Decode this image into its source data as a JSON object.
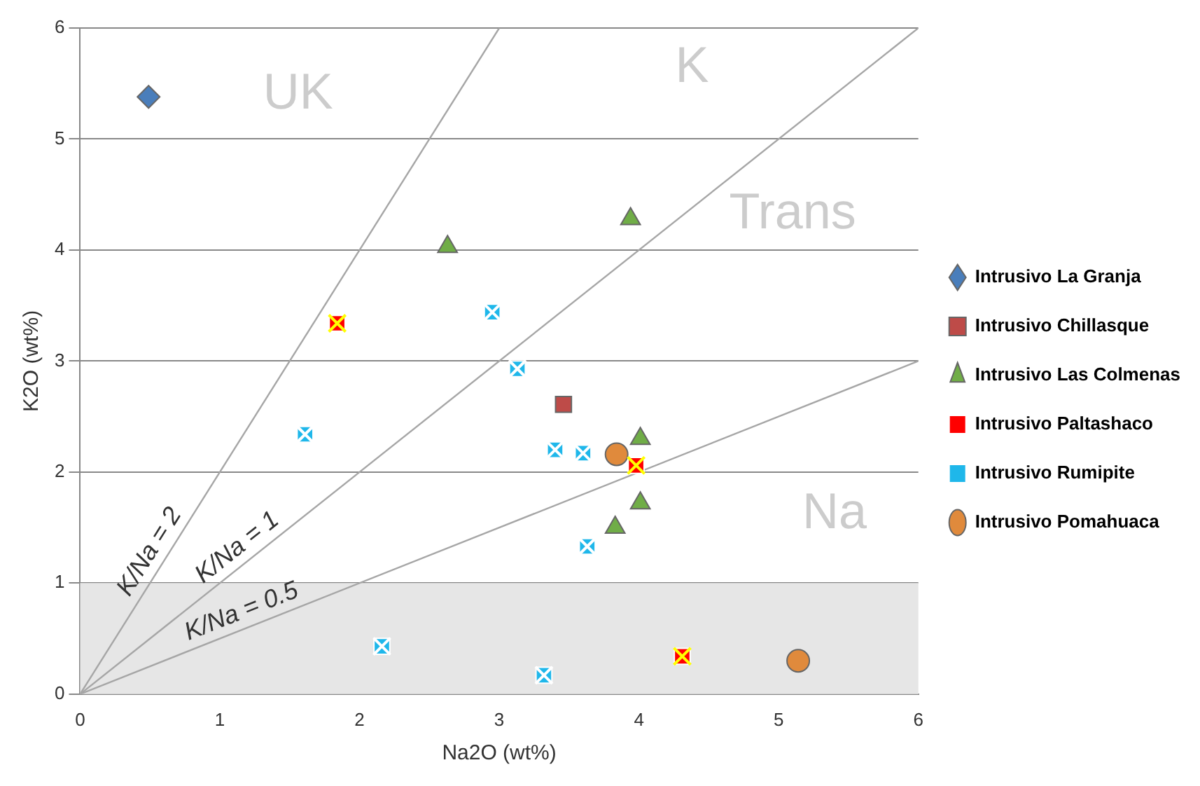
{
  "chart_data": {
    "type": "scatter",
    "xlabel": "Na2O (wt%)",
    "ylabel": "K2O (wt%)",
    "xlim": [
      0,
      6
    ],
    "ylim": [
      0,
      6
    ],
    "xticks": [
      0,
      1,
      2,
      3,
      4,
      5,
      6
    ],
    "yticks": [
      0,
      1,
      2,
      3,
      4,
      5,
      6
    ],
    "grid": "y",
    "legend": "right",
    "series": [
      {
        "name": "Intrusivo La Granja",
        "color": "#4a7ebb",
        "marker": "diamond",
        "x": [
          0.49
        ],
        "values": [
          5.38
        ]
      },
      {
        "name": "Intrusivo Chillasque",
        "color": "#be4b48",
        "marker": "square",
        "x": [
          3.46
        ],
        "values": [
          2.61
        ]
      },
      {
        "name": "Intrusivo Las Colmenas",
        "color": "#70ad47",
        "marker": "triangle",
        "x": [
          2.63,
          3.94,
          4.01,
          4.01,
          3.83
        ],
        "values": [
          4.03,
          4.28,
          2.3,
          1.72,
          1.5
        ]
      },
      {
        "name": "Intrusivo Paltashaco",
        "color": "#ff0000",
        "marker": "square",
        "x": [
          1.84,
          3.98,
          4.31
        ],
        "values": [
          3.34,
          2.06,
          0.34
        ]
      },
      {
        "name": "Intrusivo Rumipite",
        "color": "#1fb7ea",
        "marker": "square",
        "x": [
          2.95,
          3.13,
          1.61,
          3.4,
          3.6,
          3.63,
          2.16,
          3.32
        ],
        "values": [
          3.44,
          2.93,
          2.34,
          2.2,
          2.17,
          1.33,
          0.43,
          0.17
        ]
      },
      {
        "name": "Intrusivo Pomahuaca",
        "color": "#e08a3c",
        "marker": "circle",
        "x": [
          3.84,
          5.14
        ],
        "values": [
          2.16,
          0.3
        ]
      },
      {
        "name": "K/Na = 2",
        "type": "line",
        "color": "#a6a6a6",
        "marker": "none",
        "x": [
          0,
          3
        ],
        "values": [
          0,
          6
        ]
      },
      {
        "name": "K/Na = 1",
        "type": "line",
        "color": "#a6a6a6",
        "marker": "none",
        "x": [
          0,
          6
        ],
        "values": [
          0,
          6
        ]
      },
      {
        "name": "K/Na = 0.5",
        "type": "line",
        "color": "#a6a6a6",
        "marker": "none",
        "x": [
          0,
          6
        ],
        "values": [
          0,
          3
        ]
      }
    ],
    "bands": [
      {
        "axis": "y",
        "from": 0,
        "to": 1,
        "color": "#e6e6e6"
      }
    ],
    "annotations": [
      "UK",
      "K",
      "Trans",
      "Na"
    ]
  }
}
